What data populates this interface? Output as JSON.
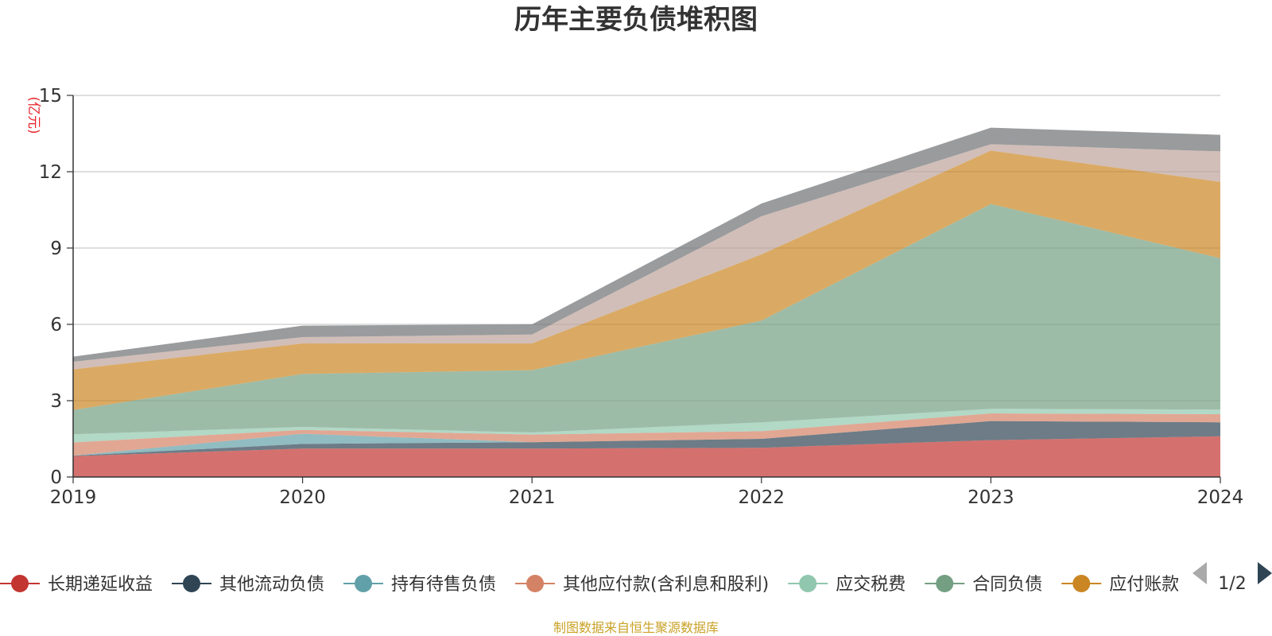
{
  "chart_data": {
    "type": "area",
    "title": "历年主要负债堆积图",
    "ylabel": "(亿元)",
    "xlabel": "",
    "ylim": [
      0,
      15
    ],
    "y_ticks": [
      "0",
      "3",
      "6",
      "9",
      "12",
      "15"
    ],
    "categories": [
      "2019",
      "2020",
      "2021",
      "2022",
      "2023",
      "2024"
    ],
    "grid": true,
    "legend_position": "bottom",
    "series": [
      {
        "name": "长期递延收益",
        "color": "#c23531",
        "values": [
          0.82,
          1.12,
          1.12,
          1.15,
          1.45,
          1.6
        ]
      },
      {
        "name": "其他流动负债",
        "color": "#2f4554",
        "values": [
          0.02,
          0.18,
          0.25,
          0.35,
          0.75,
          0.55
        ]
      },
      {
        "name": "持有待售负债",
        "color": "#61a0a8",
        "values": [
          0.0,
          0.4,
          0.0,
          0.0,
          0.0,
          0.0
        ]
      },
      {
        "name": "其他应付款(含利息和股利)",
        "color": "#d48265",
        "values": [
          0.52,
          0.15,
          0.3,
          0.3,
          0.3,
          0.32
        ]
      },
      {
        "name": "应交税费",
        "color": "#91c7ae",
        "values": [
          0.32,
          0.12,
          0.08,
          0.35,
          0.18,
          0.18
        ]
      },
      {
        "name": "合同负债",
        "color": "#749f83",
        "values": [
          0.95,
          2.08,
          2.45,
          4.0,
          8.05,
          5.95
        ]
      },
      {
        "name": "应付账款",
        "color": "#ca8622",
        "values": [
          1.6,
          1.2,
          1.05,
          2.6,
          2.1,
          3.0
        ]
      },
      {
        "name": "",
        "color": "#bda29a",
        "values": [
          0.3,
          0.25,
          0.35,
          1.5,
          0.25,
          1.2
        ]
      },
      {
        "name": "",
        "color": "#6e7074",
        "values": [
          0.2,
          0.45,
          0.4,
          0.5,
          0.65,
          0.65
        ]
      }
    ],
    "legend_visible": [
      "长期递延收益",
      "其他流动负债",
      "持有待售负债",
      "其他应付款(含利息和股利)",
      "应交税费",
      "合同负债",
      "应付账款"
    ],
    "source": "制图数据来自恒生聚源数据库"
  },
  "legend_pager": {
    "text": "1/2",
    "prev_color": "#aaaaaa",
    "next_color": "#2f4554"
  }
}
